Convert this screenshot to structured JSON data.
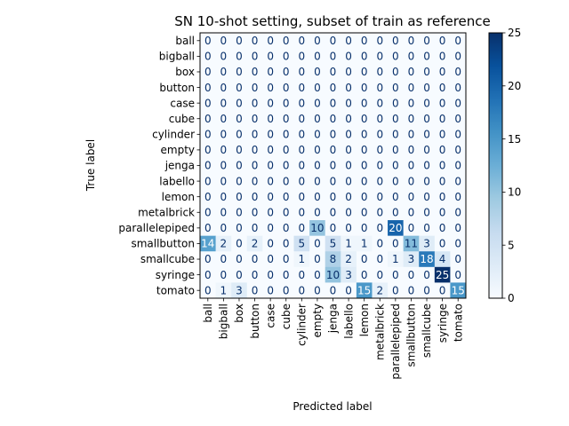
{
  "chart_data": {
    "type": "heatmap",
    "title": "SN 10-shot setting, subset of train as reference",
    "xlabel": "Predicted label",
    "ylabel": "True label",
    "labels": [
      "ball",
      "bigball",
      "box",
      "button",
      "case",
      "cube",
      "cylinder",
      "empty",
      "jenga",
      "labello",
      "lemon",
      "metalbrick",
      "parallelepiped",
      "smallbutton",
      "smallcube",
      "syringe",
      "tomato"
    ],
    "matrix": [
      [
        0,
        0,
        0,
        0,
        0,
        0,
        0,
        0,
        0,
        0,
        0,
        0,
        0,
        0,
        0,
        0,
        0
      ],
      [
        0,
        0,
        0,
        0,
        0,
        0,
        0,
        0,
        0,
        0,
        0,
        0,
        0,
        0,
        0,
        0,
        0
      ],
      [
        0,
        0,
        0,
        0,
        0,
        0,
        0,
        0,
        0,
        0,
        0,
        0,
        0,
        0,
        0,
        0,
        0
      ],
      [
        0,
        0,
        0,
        0,
        0,
        0,
        0,
        0,
        0,
        0,
        0,
        0,
        0,
        0,
        0,
        0,
        0
      ],
      [
        0,
        0,
        0,
        0,
        0,
        0,
        0,
        0,
        0,
        0,
        0,
        0,
        0,
        0,
        0,
        0,
        0
      ],
      [
        0,
        0,
        0,
        0,
        0,
        0,
        0,
        0,
        0,
        0,
        0,
        0,
        0,
        0,
        0,
        0,
        0
      ],
      [
        0,
        0,
        0,
        0,
        0,
        0,
        0,
        0,
        0,
        0,
        0,
        0,
        0,
        0,
        0,
        0,
        0
      ],
      [
        0,
        0,
        0,
        0,
        0,
        0,
        0,
        0,
        0,
        0,
        0,
        0,
        0,
        0,
        0,
        0,
        0
      ],
      [
        0,
        0,
        0,
        0,
        0,
        0,
        0,
        0,
        0,
        0,
        0,
        0,
        0,
        0,
        0,
        0,
        0
      ],
      [
        0,
        0,
        0,
        0,
        0,
        0,
        0,
        0,
        0,
        0,
        0,
        0,
        0,
        0,
        0,
        0,
        0
      ],
      [
        0,
        0,
        0,
        0,
        0,
        0,
        0,
        0,
        0,
        0,
        0,
        0,
        0,
        0,
        0,
        0,
        0
      ],
      [
        0,
        0,
        0,
        0,
        0,
        0,
        0,
        0,
        0,
        0,
        0,
        0,
        0,
        0,
        0,
        0,
        0
      ],
      [
        0,
        0,
        0,
        0,
        0,
        0,
        0,
        10,
        0,
        0,
        0,
        0,
        20,
        0,
        0,
        0,
        0
      ],
      [
        14,
        2,
        0,
        2,
        0,
        0,
        5,
        0,
        5,
        1,
        1,
        0,
        0,
        11,
        3,
        0,
        0
      ],
      [
        0,
        0,
        0,
        0,
        0,
        0,
        1,
        0,
        8,
        2,
        0,
        0,
        1,
        3,
        18,
        4,
        0
      ],
      [
        0,
        0,
        0,
        0,
        0,
        0,
        0,
        0,
        10,
        3,
        0,
        0,
        0,
        0,
        0,
        25,
        0
      ],
      [
        0,
        1,
        3,
        0,
        0,
        0,
        0,
        0,
        0,
        0,
        15,
        2,
        0,
        0,
        0,
        0,
        15
      ]
    ],
    "colormap": "Blues",
    "value_range": [
      0,
      25
    ],
    "colorbar_ticks": [
      0,
      5,
      10,
      15,
      20,
      25
    ],
    "grid": false
  }
}
